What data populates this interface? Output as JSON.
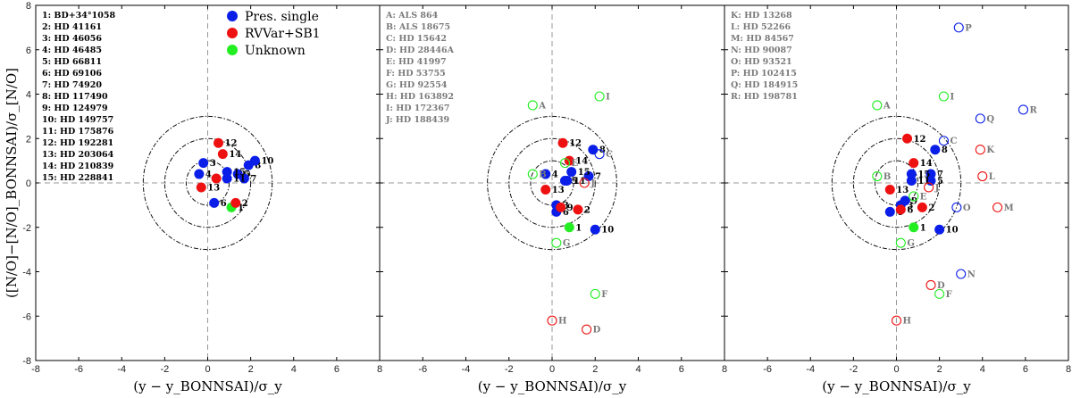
{
  "chart_data": {
    "type": "scatter",
    "xlim": [
      -8,
      8
    ],
    "ylim": [
      -8,
      8
    ],
    "xticks": [
      -8,
      -6,
      -4,
      -2,
      0,
      2,
      4,
      6,
      8
    ],
    "yticks": [
      -8,
      -6,
      -4,
      -2,
      0,
      2,
      4,
      6,
      8
    ],
    "circle_radii": [
      1,
      2,
      3
    ],
    "xlabel": "(y − y_BONNSAI)/σ_y",
    "ylabel": "([N/O]−[N/O]_BONNSAI)/σ_[N/O]",
    "legend": [
      {
        "label": "Pres. single",
        "color": "#0a1ee8"
      },
      {
        "label": "RVVar+SB1",
        "color": "#ee1111"
      },
      {
        "label": "Unknown",
        "color": "#22ee22"
      }
    ],
    "colors": {
      "single": "#0a1ee8",
      "rvvar": "#ee1111",
      "unknown": "#22ee22",
      "filled_label": "#000000",
      "open_label": "#7a7a7a"
    },
    "panels": [
      {
        "legend": true,
        "list_color": "filled_label",
        "list": [
          "1: BD+34°1058",
          "2: HD 41161",
          "3: HD 46056",
          "4: HD 46485",
          "5: HD 66811",
          "6: HD 69106",
          "7: HD 74920",
          "8: HD 117490",
          "9: HD 124979",
          "10: HD 149757",
          "11: HD 175876",
          "12: HD 192281",
          "13: HD 203064",
          "14: HD 210839",
          "15: HD 228841"
        ],
        "points": [
          {
            "label": "1",
            "x": 1.1,
            "y": -1.1,
            "cls": "unknown",
            "filled": true
          },
          {
            "label": "2",
            "x": 1.3,
            "y": -0.9,
            "cls": "rvvar",
            "filled": true
          },
          {
            "label": "3",
            "x": -0.2,
            "y": 0.9,
            "cls": "single",
            "filled": true
          },
          {
            "label": "4",
            "x": -0.4,
            "y": 0.4,
            "cls": "single",
            "filled": true
          },
          {
            "label": "5",
            "x": 1.4,
            "y": 0.4,
            "cls": "single",
            "filled": true
          },
          {
            "label": "6",
            "x": 0.3,
            "y": -0.9,
            "cls": "single",
            "filled": true
          },
          {
            "label": "7",
            "x": 1.7,
            "y": 0.2,
            "cls": "single",
            "filled": true
          },
          {
            "label": "8",
            "x": 1.9,
            "y": 0.8,
            "cls": "single",
            "filled": true
          },
          {
            "label": "9",
            "x": 0.4,
            "y": 0.2,
            "cls": "rvvar",
            "filled": true
          },
          {
            "label": "10",
            "x": 2.2,
            "y": 1.0,
            "cls": "single",
            "filled": true
          },
          {
            "label": "11",
            "x": 0.9,
            "y": 0.2,
            "cls": "single",
            "filled": true
          },
          {
            "label": "12",
            "x": 0.5,
            "y": 1.8,
            "cls": "rvvar",
            "filled": true
          },
          {
            "label": "13",
            "x": -0.3,
            "y": -0.2,
            "cls": "rvvar",
            "filled": true
          },
          {
            "label": "14",
            "x": 0.7,
            "y": 1.3,
            "cls": "rvvar",
            "filled": true
          },
          {
            "label": "15",
            "x": 0.9,
            "y": 0.5,
            "cls": "single",
            "filled": true
          }
        ]
      },
      {
        "legend": false,
        "list_color": "open_label",
        "list": [
          "A: ALS 864",
          "B: ALS 18675",
          "C: HD 15642",
          "D: HD 28446A",
          "E: HD 41997",
          "F: HD 53755",
          "G: HD 92554",
          "H: HD 163892",
          "I: HD 172367",
          "J: HD 188439"
        ],
        "points": [
          {
            "label": "1",
            "x": 0.8,
            "y": -2.0,
            "cls": "unknown",
            "filled": true
          },
          {
            "label": "2",
            "x": 1.2,
            "y": -1.2,
            "cls": "rvvar",
            "filled": true
          },
          {
            "label": "3",
            "x": 0.2,
            "y": -1.0,
            "cls": "single",
            "filled": true
          },
          {
            "label": "4",
            "x": -0.3,
            "y": 0.4,
            "cls": "single",
            "filled": true
          },
          {
            "label": "5",
            "x": 0.6,
            "y": 0.1,
            "cls": "single",
            "filled": true
          },
          {
            "label": "6",
            "x": 0.2,
            "y": -1.3,
            "cls": "single",
            "filled": true
          },
          {
            "label": "7",
            "x": 1.7,
            "y": 0.3,
            "cls": "single",
            "filled": true
          },
          {
            "label": "8",
            "x": 1.9,
            "y": 1.5,
            "cls": "single",
            "filled": true
          },
          {
            "label": "9",
            "x": 0.4,
            "y": -1.1,
            "cls": "rvvar",
            "filled": true
          },
          {
            "label": "10",
            "x": 2.0,
            "y": -2.1,
            "cls": "single",
            "filled": true
          },
          {
            "label": "11",
            "x": 0.7,
            "y": 0.1,
            "cls": "single",
            "filled": true
          },
          {
            "label": "12",
            "x": 0.5,
            "y": 1.8,
            "cls": "rvvar",
            "filled": true
          },
          {
            "label": "13",
            "x": -0.3,
            "y": -0.3,
            "cls": "rvvar",
            "filled": true
          },
          {
            "label": "14",
            "x": 0.8,
            "y": 1.0,
            "cls": "rvvar",
            "filled": true
          },
          {
            "label": "15",
            "x": 0.9,
            "y": 0.5,
            "cls": "single",
            "filled": true
          },
          {
            "label": "A",
            "x": -0.9,
            "y": 3.5,
            "cls": "unknown",
            "filled": false
          },
          {
            "label": "B",
            "x": -0.9,
            "y": 0.4,
            "cls": "unknown",
            "filled": false
          },
          {
            "label": "C",
            "x": 2.2,
            "y": 1.3,
            "cls": "single",
            "filled": false
          },
          {
            "label": "D",
            "x": 1.6,
            "y": -6.6,
            "cls": "rvvar",
            "filled": false
          },
          {
            "label": "E",
            "x": 0.6,
            "y": 0.9,
            "cls": "unknown",
            "filled": false
          },
          {
            "label": "F",
            "x": 2.0,
            "y": -5.0,
            "cls": "unknown",
            "filled": false
          },
          {
            "label": "G",
            "x": 0.2,
            "y": -2.7,
            "cls": "unknown",
            "filled": false
          },
          {
            "label": "H",
            "x": 0.0,
            "y": -6.2,
            "cls": "rvvar",
            "filled": false
          },
          {
            "label": "I",
            "x": 2.2,
            "y": 3.9,
            "cls": "unknown",
            "filled": false
          },
          {
            "label": "J",
            "x": 1.5,
            "y": 0.0,
            "cls": "rvvar",
            "filled": false
          }
        ]
      },
      {
        "legend": false,
        "list_color": "open_label",
        "list": [
          "K: HD 13268",
          "L: HD 52266",
          "M: HD 84567",
          "N: HD 90087",
          "O: HD 93521",
          "P: HD 102415",
          "Q: HD 184915",
          "R: HD 198781"
        ],
        "points": [
          {
            "label": "1",
            "x": 0.8,
            "y": -2.0,
            "cls": "unknown",
            "filled": true
          },
          {
            "label": "2",
            "x": 1.2,
            "y": -1.1,
            "cls": "rvvar",
            "filled": true
          },
          {
            "label": "3",
            "x": 0.2,
            "y": -1.0,
            "cls": "single",
            "filled": true
          },
          {
            "label": "4",
            "x": -0.3,
            "y": -1.3,
            "cls": "single",
            "filled": true
          },
          {
            "label": "5",
            "x": 1.6,
            "y": 0.1,
            "cls": "single",
            "filled": true
          },
          {
            "label": "6",
            "x": 0.2,
            "y": -1.2,
            "cls": "rvvar",
            "filled": true
          },
          {
            "label": "7",
            "x": 1.6,
            "y": 0.4,
            "cls": "single",
            "filled": true
          },
          {
            "label": "8",
            "x": 1.8,
            "y": 1.5,
            "cls": "single",
            "filled": true
          },
          {
            "label": "9",
            "x": 0.4,
            "y": -0.8,
            "cls": "single",
            "filled": true
          },
          {
            "label": "10",
            "x": 2.0,
            "y": -2.1,
            "cls": "single",
            "filled": true
          },
          {
            "label": "11",
            "x": 0.7,
            "y": 0.1,
            "cls": "single",
            "filled": true
          },
          {
            "label": "12",
            "x": 0.5,
            "y": 2.0,
            "cls": "rvvar",
            "filled": true
          },
          {
            "label": "13",
            "x": -0.3,
            "y": -0.3,
            "cls": "rvvar",
            "filled": true
          },
          {
            "label": "14",
            "x": 0.8,
            "y": 0.9,
            "cls": "rvvar",
            "filled": true
          },
          {
            "label": "15",
            "x": 0.7,
            "y": 0.4,
            "cls": "single",
            "filled": true
          },
          {
            "label": "A",
            "x": -0.9,
            "y": 3.5,
            "cls": "unknown",
            "filled": false
          },
          {
            "label": "B",
            "x": -0.9,
            "y": 0.3,
            "cls": "unknown",
            "filled": false
          },
          {
            "label": "C",
            "x": 2.2,
            "y": 1.9,
            "cls": "single",
            "filled": false
          },
          {
            "label": "D",
            "x": 1.6,
            "y": -4.6,
            "cls": "rvvar",
            "filled": false
          },
          {
            "label": "E",
            "x": 0.8,
            "y": -0.6,
            "cls": "unknown",
            "filled": false
          },
          {
            "label": "F",
            "x": 2.0,
            "y": -5.0,
            "cls": "unknown",
            "filled": false
          },
          {
            "label": "G",
            "x": 0.2,
            "y": -2.7,
            "cls": "unknown",
            "filled": false
          },
          {
            "label": "H",
            "x": 0.0,
            "y": -6.2,
            "cls": "rvvar",
            "filled": false
          },
          {
            "label": "I",
            "x": 2.2,
            "y": 3.9,
            "cls": "unknown",
            "filled": false
          },
          {
            "label": "J",
            "x": 1.5,
            "y": -0.2,
            "cls": "rvvar",
            "filled": false
          },
          {
            "label": "K",
            "x": 3.9,
            "y": 1.5,
            "cls": "rvvar",
            "filled": false
          },
          {
            "label": "L",
            "x": 4.0,
            "y": 0.3,
            "cls": "rvvar",
            "filled": false
          },
          {
            "label": "M",
            "x": 4.7,
            "y": -1.1,
            "cls": "rvvar",
            "filled": false
          },
          {
            "label": "N",
            "x": 3.0,
            "y": -4.1,
            "cls": "single",
            "filled": false
          },
          {
            "label": "O",
            "x": 2.8,
            "y": -1.1,
            "cls": "single",
            "filled": false
          },
          {
            "label": "P",
            "x": 2.9,
            "y": 7.0,
            "cls": "single",
            "filled": false
          },
          {
            "label": "Q",
            "x": 3.9,
            "y": 2.9,
            "cls": "single",
            "filled": false
          },
          {
            "label": "R",
            "x": 5.9,
            "y": 3.3,
            "cls": "single",
            "filled": false
          }
        ]
      }
    ]
  }
}
